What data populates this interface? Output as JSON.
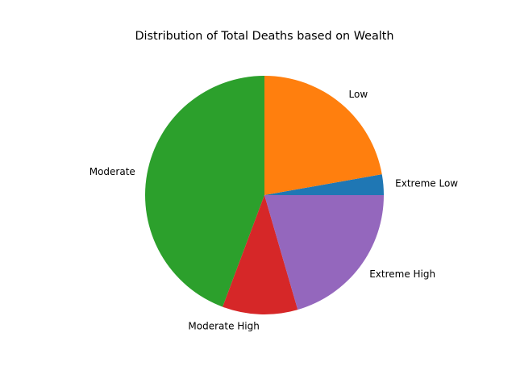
{
  "chart_data": {
    "type": "pie",
    "title": "Distribution of Total Deaths based on Wealth",
    "start_angle_deg": 0,
    "direction": "counterclockwise",
    "legend": "none",
    "slices": [
      {
        "label": "Extreme Low",
        "value": 2.8,
        "color": "#1f77b4"
      },
      {
        "label": "Low",
        "value": 22.2,
        "color": "#ff7f0e"
      },
      {
        "label": "Moderate",
        "value": 44.3,
        "color": "#2ca02c"
      },
      {
        "label": "Moderate High",
        "value": 10.2,
        "color": "#d62728"
      },
      {
        "label": "Extreme High",
        "value": 20.5,
        "color": "#9467bd"
      }
    ]
  }
}
